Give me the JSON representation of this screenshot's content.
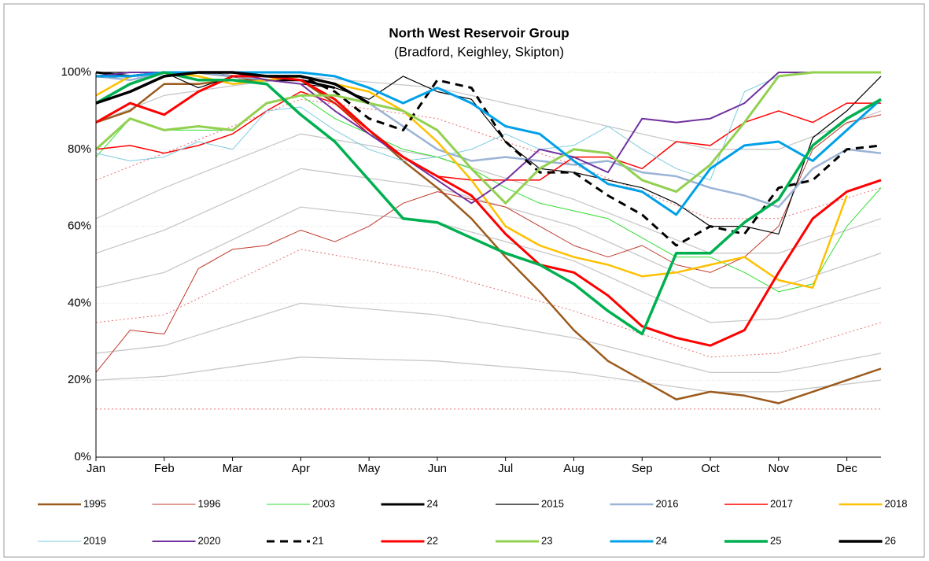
{
  "chart_data": {
    "type": "line",
    "title": "North West Reservoir Group",
    "subtitle": "(Bradford, Keighley, Skipton)",
    "xlim": [
      0,
      11.5
    ],
    "xticks": [
      {
        "value": 0,
        "label": "Jan"
      },
      {
        "value": 1,
        "label": "Feb"
      },
      {
        "value": 2,
        "label": "Mar"
      },
      {
        "value": 3,
        "label": "Apr"
      },
      {
        "value": 4,
        "label": "May"
      },
      {
        "value": 5,
        "label": "Jun"
      },
      {
        "value": 6,
        "label": "Jul"
      },
      {
        "value": 7,
        "label": "Aug"
      },
      {
        "value": 8,
        "label": "Sep"
      },
      {
        "value": 9,
        "label": "Oct"
      },
      {
        "value": 10,
        "label": "Nov"
      },
      {
        "value": 11,
        "label": "Dec"
      }
    ],
    "ylim": [
      0,
      100
    ],
    "yticks": [
      {
        "value": 0,
        "label": "0%"
      },
      {
        "value": 20,
        "label": "20%"
      },
      {
        "value": 40,
        "label": "40%"
      },
      {
        "value": 60,
        "label": "60%"
      },
      {
        "value": 80,
        "label": "80%"
      },
      {
        "value": 100,
        "label": "100%"
      }
    ],
    "grid": true,
    "x": [
      0,
      0.5,
      1,
      1.5,
      2,
      2.5,
      3,
      3.5,
      4,
      4.5,
      5,
      5.5,
      6,
      6.5,
      7,
      7.5,
      8,
      8.5,
      9,
      9.5,
      10,
      10.5,
      11,
      11.5
    ],
    "reference_x": [
      0,
      1,
      3,
      5,
      7,
      9,
      10,
      11.5
    ],
    "reference_series": [
      {
        "color": "#c8c8c8",
        "dash": false,
        "values": [
          87,
          94,
          99,
          96,
          88,
          80,
          80,
          90
        ]
      },
      {
        "color": "#c8c8c8",
        "dash": false,
        "values": [
          62,
          70,
          84,
          78,
          67,
          53,
          53,
          62
        ]
      },
      {
        "color": "#c8c8c8",
        "dash": false,
        "values": [
          53,
          59,
          75,
          70,
          60,
          44,
          44,
          53
        ]
      },
      {
        "color": "#c8c8c8",
        "dash": false,
        "values": [
          44,
          48,
          65,
          61,
          51,
          35,
          36,
          44
        ]
      },
      {
        "color": "#c8c8c8",
        "dash": false,
        "values": [
          27,
          29,
          40,
          37,
          31,
          22,
          22,
          27
        ]
      },
      {
        "color": "#c8c8c8",
        "dash": false,
        "values": [
          20,
          21,
          26,
          25,
          22,
          17,
          17,
          20
        ]
      },
      {
        "color": "#e87070",
        "dash": true,
        "values": [
          72,
          79,
          93,
          88,
          76,
          62,
          62,
          70
        ]
      },
      {
        "color": "#e87070",
        "dash": true,
        "values": [
          35,
          37,
          54,
          48,
          38,
          26,
          27,
          35
        ]
      },
      {
        "color": "#e87070",
        "dash": true,
        "values": [
          12.5,
          12.5,
          12.5,
          12.5,
          12.5,
          12.5,
          12.5,
          12.5
        ]
      }
    ],
    "series": [
      {
        "name": "1995",
        "color": "#9c5a1c",
        "width": 2.5,
        "dash": false,
        "values": [
          87,
          90,
          97,
          97,
          98,
          98,
          98,
          92,
          85,
          77,
          70,
          62,
          52,
          43,
          33,
          25,
          20,
          15,
          17,
          16,
          14,
          17,
          20,
          23
        ]
      },
      {
        "name": "1996",
        "color": "#c0392b",
        "width": 1,
        "dash": false,
        "values": [
          22,
          33,
          32,
          49,
          54,
          55,
          59,
          56,
          60,
          66,
          69,
          67,
          65,
          60,
          55,
          52,
          55,
          50,
          48,
          52,
          60,
          80,
          87,
          89
        ]
      },
      {
        "name": "2003",
        "color": "#33dd33",
        "width": 1,
        "dash": false,
        "values": [
          78,
          88,
          85,
          85,
          85,
          92,
          94,
          88,
          84,
          80,
          78,
          75,
          70,
          66,
          64,
          62,
          57,
          52,
          52,
          48,
          43,
          45,
          60,
          70
        ]
      },
      {
        "name": "24",
        "color": "#000000",
        "width": 3,
        "dash": false,
        "values": [
          100,
          99,
          100,
          100,
          99,
          98,
          98,
          96,
          null,
          null,
          null,
          null,
          null,
          null,
          null,
          null,
          null,
          null,
          null,
          null,
          null,
          null,
          null,
          null
        ]
      },
      {
        "name": "2015",
        "color": "#000000",
        "width": 1.2,
        "dash": false,
        "values": [
          100,
          100,
          100,
          96,
          99,
          98,
          97,
          96,
          93,
          99,
          95,
          93,
          82,
          75,
          74,
          72,
          70,
          66,
          60,
          60,
          58,
          83,
          90,
          99
        ]
      },
      {
        "name": "2016",
        "color": "#9bb3d6",
        "width": 2.5,
        "dash": false,
        "values": [
          99,
          98,
          100,
          100,
          99,
          98,
          99,
          97,
          92,
          86,
          80,
          77,
          78,
          77,
          76,
          77,
          74,
          73,
          70,
          68,
          65,
          75,
          80,
          79
        ]
      },
      {
        "name": "2017",
        "color": "#ff0000",
        "width": 1.5,
        "dash": false,
        "values": [
          80,
          81,
          79,
          81,
          84,
          90,
          95,
          92,
          84,
          78,
          73,
          72,
          72,
          72,
          78,
          78,
          75,
          82,
          81,
          87,
          90,
          87,
          92,
          92
        ]
      },
      {
        "name": "2018",
        "color": "#ffc000",
        "width": 2.5,
        "dash": false,
        "values": [
          94,
          99,
          100,
          99,
          97,
          98,
          99,
          97,
          95,
          90,
          82,
          72,
          60,
          55,
          52,
          50,
          47,
          48,
          50,
          52,
          46,
          44,
          68,
          null
        ]
      },
      {
        "name": "2019",
        "color": "#7ecbe0",
        "width": 1,
        "dash": false,
        "values": [
          79,
          77,
          78,
          82,
          80,
          90,
          91,
          85,
          80,
          77,
          78,
          80,
          84,
          80,
          81,
          86,
          80,
          75,
          72,
          95,
          99,
          100,
          100,
          100
        ]
      },
      {
        "name": "2020",
        "color": "#7030a0",
        "width": 2,
        "dash": false,
        "values": [
          99,
          100,
          100,
          100,
          100,
          98,
          97,
          90,
          84,
          78,
          72,
          66,
          72,
          80,
          78,
          74,
          88,
          87,
          88,
          92,
          100,
          100,
          100,
          100
        ]
      },
      {
        "name": "21",
        "color": "#000000",
        "width": 3,
        "dash": true,
        "values": [
          99,
          99,
          100,
          100,
          100,
          99,
          99,
          95,
          88,
          85,
          98,
          96,
          82,
          74,
          74,
          68,
          63,
          55,
          60,
          58,
          70,
          72,
          80,
          81
        ]
      },
      {
        "name": "22",
        "color": "#ff0000",
        "width": 3,
        "dash": false,
        "values": [
          87,
          92,
          89,
          95,
          99,
          99,
          98,
          93,
          85,
          78,
          73,
          68,
          58,
          50,
          48,
          42,
          34,
          31,
          29,
          33,
          48,
          62,
          69,
          72
        ]
      },
      {
        "name": "23",
        "color": "#92d050",
        "width": 3,
        "dash": false,
        "values": [
          80,
          88,
          85,
          86,
          85,
          92,
          94,
          94,
          92,
          90,
          85,
          75,
          66,
          75,
          80,
          79,
          72,
          69,
          76,
          87,
          99,
          100,
          100,
          100
        ]
      },
      {
        "name": "24",
        "color": "#00a0e8",
        "width": 3,
        "dash": false,
        "values": [
          99,
          99,
          100,
          100,
          100,
          100,
          100,
          99,
          96,
          92,
          96,
          92,
          86,
          84,
          77,
          71,
          69,
          63,
          75,
          81,
          82,
          77,
          85,
          93
        ]
      },
      {
        "name": "25",
        "color": "#00b050",
        "width": 3.5,
        "dash": false,
        "values": [
          92,
          97,
          100,
          98,
          98,
          97,
          89,
          82,
          72,
          62,
          61,
          57,
          53,
          50,
          45,
          38,
          32,
          53,
          53,
          61,
          67,
          81,
          88,
          93
        ]
      },
      {
        "name": "26",
        "color": "#000000",
        "width": 3.5,
        "dash": false,
        "values": [
          92,
          95,
          99,
          100,
          100,
          99,
          99,
          97,
          92,
          null,
          null,
          null,
          null,
          null,
          null,
          null,
          null,
          null,
          null,
          null,
          null,
          null,
          null,
          null
        ]
      }
    ]
  }
}
